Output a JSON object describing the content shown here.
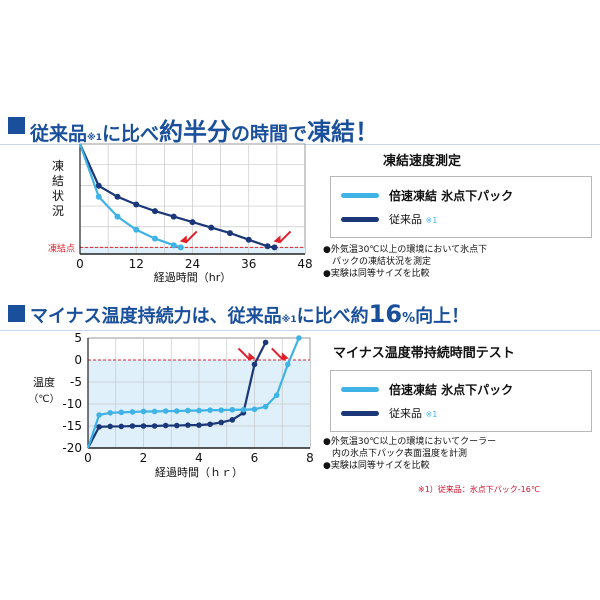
{
  "section1": {
    "headline": {
      "a": "従来品",
      "note": "※1",
      "b": "に比べ",
      "c": "約半分",
      "d": "の時間で",
      "e": "凍結！"
    },
    "subtitle": "凍結速度測定",
    "legend": [
      {
        "label": "倍速凍結  氷点下パック",
        "color": "#3fb2e6"
      },
      {
        "label": "従来品",
        "note": "※1",
        "color": "#1b3778"
      }
    ],
    "notes": [
      "●外気温30℃以上の環境において氷点下",
      "パックの凍結状況を測定",
      "●実験は同等サイズを比較"
    ]
  },
  "section2": {
    "headline": {
      "a": "マイナス温度持続力は、従来品",
      "note": "※1",
      "b": "に比べ約",
      "c": "16",
      "d": "%",
      "e": "向上！"
    },
    "subtitle": "マイナス温度帯持続時間テスト",
    "legend": [
      {
        "label": "倍速凍結  氷点下パック",
        "color": "#3fb2e6"
      },
      {
        "label": "従来品",
        "note": "※1",
        "color": "#1b3778"
      }
    ],
    "notes": [
      "●外気温30℃以上の環境においてクーラー",
      "内の氷点下パック表面温度を計測",
      "●実験は同等サイズを比較"
    ]
  },
  "footnote": "※1）従来品：氷点下パック-16℃",
  "chart_data": [
    {
      "type": "line",
      "xlabel": "経過時間（hr）",
      "ylabel": "凍結状況",
      "xlim": [
        0,
        48
      ],
      "xticks": [
        0,
        12,
        24,
        36,
        48
      ],
      "threshold_label": "凍結点",
      "grid": true,
      "series": [
        {
          "name": "倍速凍結  氷点下パック",
          "color": "#3fb2e6",
          "points": [
            [
              0,
              100
            ],
            [
              4,
              52
            ],
            [
              8,
              34
            ],
            [
              12,
              22
            ],
            [
              16,
              14
            ],
            [
              20,
              8
            ],
            [
              21.5,
              6
            ]
          ]
        },
        {
          "name": "従来品",
          "color": "#1b3778",
          "points": [
            [
              0,
              100
            ],
            [
              4,
              62
            ],
            [
              8,
              52
            ],
            [
              12,
              45
            ],
            [
              16,
              39
            ],
            [
              20,
              34
            ],
            [
              24,
              29
            ],
            [
              28,
              24
            ],
            [
              32,
              19
            ],
            [
              36,
              13
            ],
            [
              40,
              7
            ],
            [
              41.5,
              6
            ]
          ]
        }
      ],
      "arrows": [
        {
          "x": 21.5,
          "y": 6
        },
        {
          "x": 41.5,
          "y": 6
        }
      ]
    },
    {
      "type": "line",
      "xlabel": "経過時間（ｈｒ）",
      "ylabel": "温度（℃）",
      "xlim": [
        0,
        8
      ],
      "ylim": [
        -20,
        5
      ],
      "xticks": [
        0,
        2,
        4,
        6,
        8
      ],
      "yticks": [
        5,
        0,
        -5,
        -10,
        -15,
        -20
      ],
      "grid": true,
      "series": [
        {
          "name": "倍速凍結  氷点下パック",
          "color": "#3fb2e6",
          "points": [
            [
              0,
              -20
            ],
            [
              0.4,
              -12.5
            ],
            [
              0.8,
              -12
            ],
            [
              1.2,
              -11.9
            ],
            [
              1.6,
              -11.8
            ],
            [
              2,
              -11.7
            ],
            [
              2.4,
              -11.7
            ],
            [
              2.8,
              -11.6
            ],
            [
              3.2,
              -11.6
            ],
            [
              3.6,
              -11.5
            ],
            [
              4,
              -11.5
            ],
            [
              4.4,
              -11.4
            ],
            [
              4.8,
              -11.4
            ],
            [
              5.2,
              -11.3
            ],
            [
              5.6,
              -11.3
            ],
            [
              6,
              -11.2
            ],
            [
              6.4,
              -10.6
            ],
            [
              6.8,
              -8
            ],
            [
              7.2,
              -1
            ],
            [
              7.6,
              5
            ]
          ]
        },
        {
          "name": "従来品",
          "color": "#1b3778",
          "points": [
            [
              0,
              -20
            ],
            [
              0.4,
              -15.2
            ],
            [
              0.8,
              -15.1
            ],
            [
              1.2,
              -15.1
            ],
            [
              1.6,
              -15
            ],
            [
              2,
              -15
            ],
            [
              2.4,
              -15
            ],
            [
              2.8,
              -14.9
            ],
            [
              3.2,
              -14.9
            ],
            [
              3.6,
              -14.8
            ],
            [
              4,
              -14.8
            ],
            [
              4.4,
              -14.6
            ],
            [
              4.8,
              -14.2
            ],
            [
              5.2,
              -13.6
            ],
            [
              5.6,
              -12
            ],
            [
              6,
              -1
            ],
            [
              6.4,
              4
            ]
          ]
        }
      ],
      "arrows": [
        {
          "x": 6,
          "y": -1
        },
        {
          "x": 7.2,
          "y": -1
        }
      ]
    }
  ],
  "colors": {
    "accent": "#1a4f9c",
    "ice_blue": "#3fb2e6",
    "conventional": "#1b3778",
    "arrow": "#e0202a",
    "frozen_zone": "#dff0fb"
  }
}
